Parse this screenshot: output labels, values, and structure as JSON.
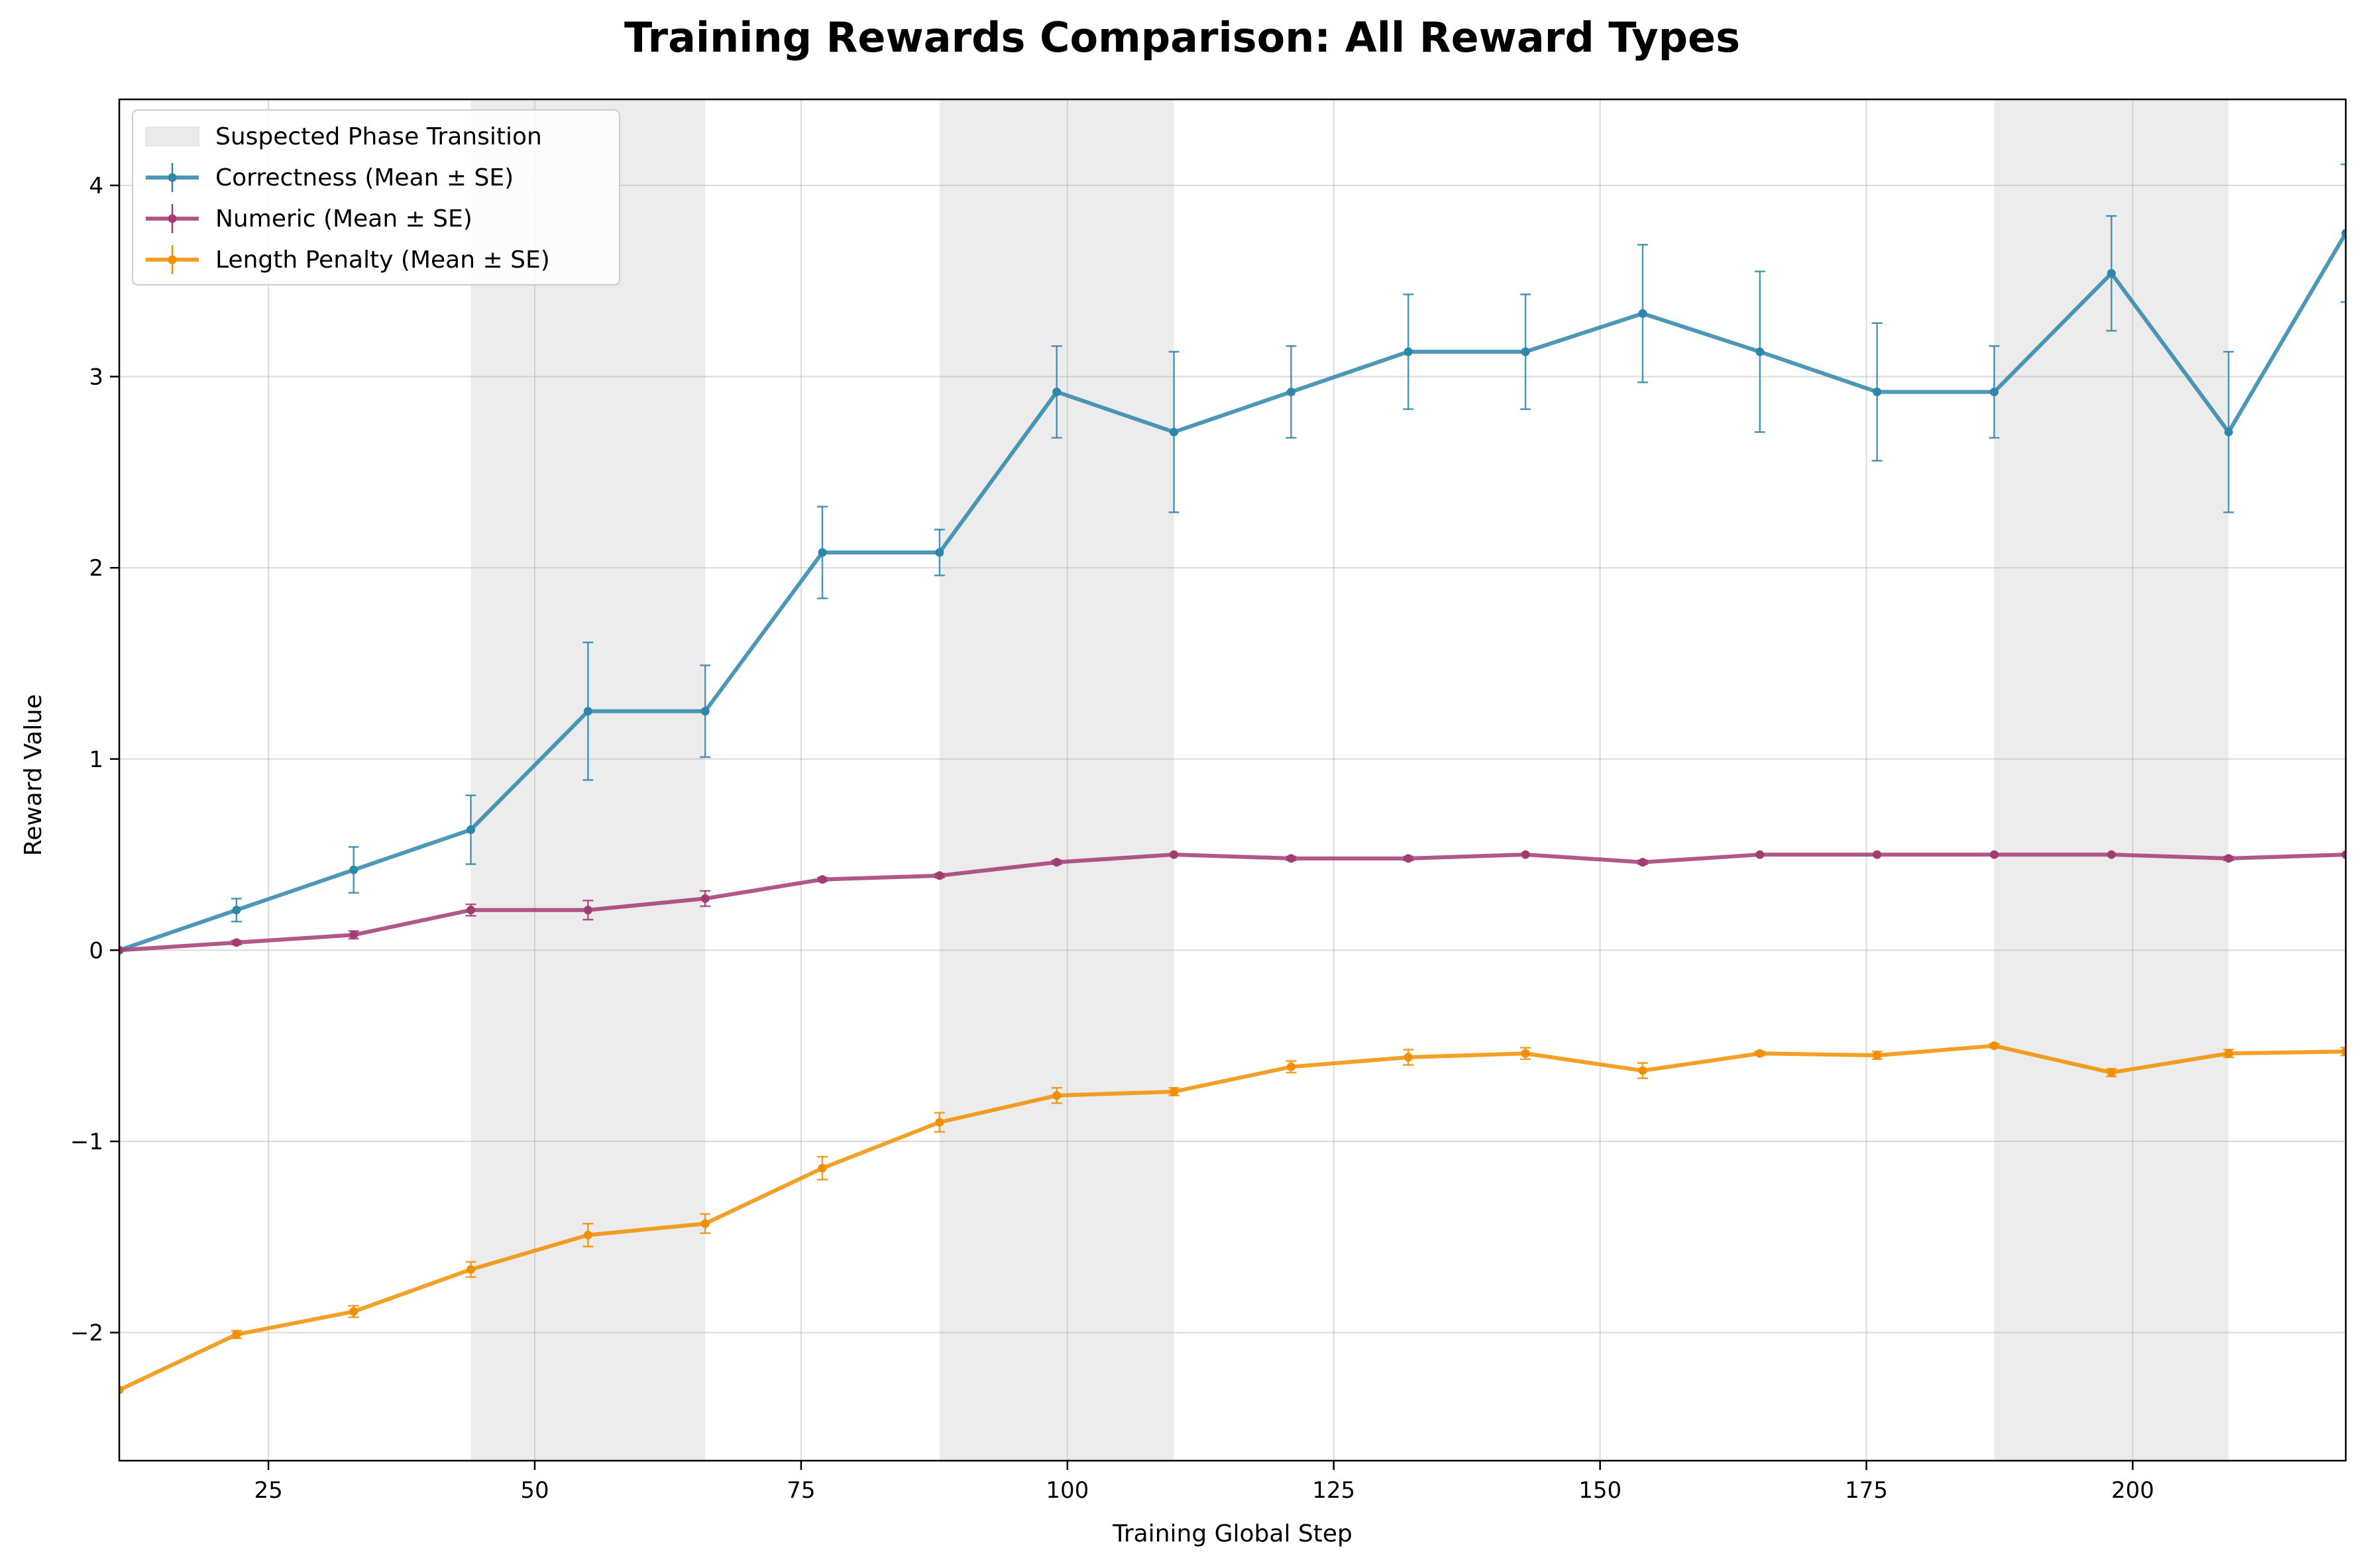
{
  "chart_data": {
    "type": "line",
    "title": "Training Rewards Comparison: All Reward Types",
    "xlabel": "Training Global Step",
    "ylabel": "Reward Value",
    "xlim": [
      11,
      220
    ],
    "ylim": [
      -2.67,
      4.45
    ],
    "xticks": [
      25,
      50,
      75,
      100,
      125,
      150,
      175,
      200
    ],
    "yticks": [
      -2,
      -1,
      0,
      1,
      2,
      3,
      4
    ],
    "ytick_labels": [
      "−2",
      "−1",
      "0",
      "1",
      "2",
      "3",
      "4"
    ],
    "grid": true,
    "legend_position": "top-left",
    "shaded_regions": {
      "name": "Suspected Phase Transition",
      "color": "#d9d9d9",
      "ranges": [
        [
          44,
          66
        ],
        [
          88,
          110
        ],
        [
          187,
          209
        ]
      ]
    },
    "x": [
      11,
      22,
      33,
      44,
      55,
      66,
      77,
      88,
      99,
      110,
      121,
      132,
      143,
      154,
      165,
      176,
      187,
      198,
      209,
      220
    ],
    "series": [
      {
        "name": "Correctness (Mean ± SE)",
        "color": "#2e86ab",
        "values": [
          0.0,
          0.21,
          0.42,
          0.63,
          1.25,
          1.25,
          2.08,
          2.08,
          2.92,
          2.71,
          2.92,
          3.13,
          3.13,
          3.33,
          3.13,
          2.92,
          2.92,
          3.54,
          2.71,
          3.75
        ],
        "errors": [
          0.0,
          0.06,
          0.12,
          0.18,
          0.36,
          0.24,
          0.24,
          0.12,
          0.24,
          0.42,
          0.24,
          0.3,
          0.3,
          0.36,
          0.42,
          0.36,
          0.24,
          0.3,
          0.42,
          0.36
        ]
      },
      {
        "name": "Numeric (Mean ± SE)",
        "color": "#a23b72",
        "values": [
          0.0,
          0.04,
          0.08,
          0.21,
          0.21,
          0.27,
          0.37,
          0.39,
          0.46,
          0.5,
          0.48,
          0.48,
          0.5,
          0.46,
          0.5,
          0.5,
          0.5,
          0.5,
          0.48,
          0.5
        ],
        "errors": [
          0.0,
          0.01,
          0.02,
          0.03,
          0.05,
          0.04,
          0.01,
          0.01,
          0.01,
          0.0,
          0.01,
          0.01,
          0.0,
          0.01,
          0.0,
          0.0,
          0.0,
          0.0,
          0.01,
          0.0
        ]
      },
      {
        "name": "Length Penalty (Mean ± SE)",
        "color": "#f18f01",
        "values": [
          -2.3,
          -2.01,
          -1.89,
          -1.67,
          -1.49,
          -1.43,
          -1.14,
          -0.9,
          -0.76,
          -0.74,
          -0.61,
          -0.56,
          -0.54,
          -0.63,
          -0.54,
          -0.55,
          -0.5,
          -0.64,
          -0.54,
          -0.53
        ],
        "errors": [
          0.0,
          0.02,
          0.03,
          0.04,
          0.06,
          0.05,
          0.06,
          0.05,
          0.04,
          0.02,
          0.03,
          0.04,
          0.03,
          0.04,
          0.01,
          0.02,
          0.01,
          0.02,
          0.02,
          0.02
        ]
      }
    ]
  }
}
